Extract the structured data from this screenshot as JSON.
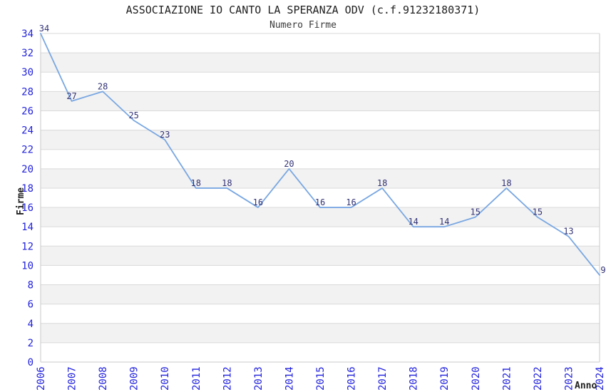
{
  "chart_data": {
    "type": "line",
    "title": "ASSOCIAZIONE IO CANTO LA SPERANZA ODV (c.f.91232180371)",
    "subtitle": "Numero Firme",
    "x": [
      "2006",
      "2007",
      "2008",
      "2009",
      "2010",
      "2011",
      "2012",
      "2013",
      "2014",
      "2015",
      "2016",
      "2017",
      "2018",
      "2019",
      "2020",
      "2021",
      "2022",
      "2023",
      "2024"
    ],
    "series": [
      {
        "name": "Numero Firme",
        "values": [
          34,
          27,
          28,
          25,
          23,
          18,
          18,
          16,
          20,
          16,
          16,
          18,
          14,
          14,
          15,
          18,
          15,
          13,
          9
        ]
      }
    ],
    "xlabel": "Anno",
    "ylabel": "Firme",
    "ylim": [
      0,
      34
    ],
    "ytick_step": 2,
    "grid": true,
    "legend": "none",
    "band_pattern": "alternating horizontal stripes every 2 units",
    "colors": {
      "line": "#79a7e2",
      "tick_label": "#2222dd",
      "data_label": "#333377",
      "band": "#f2f2f2",
      "grid": "#dadada",
      "axis": "#c9c9c9",
      "title": "#1f1f1f",
      "subtitle": "#3a3a3a",
      "axis_title": "#1f1f1f",
      "background": "#ffffff"
    }
  }
}
